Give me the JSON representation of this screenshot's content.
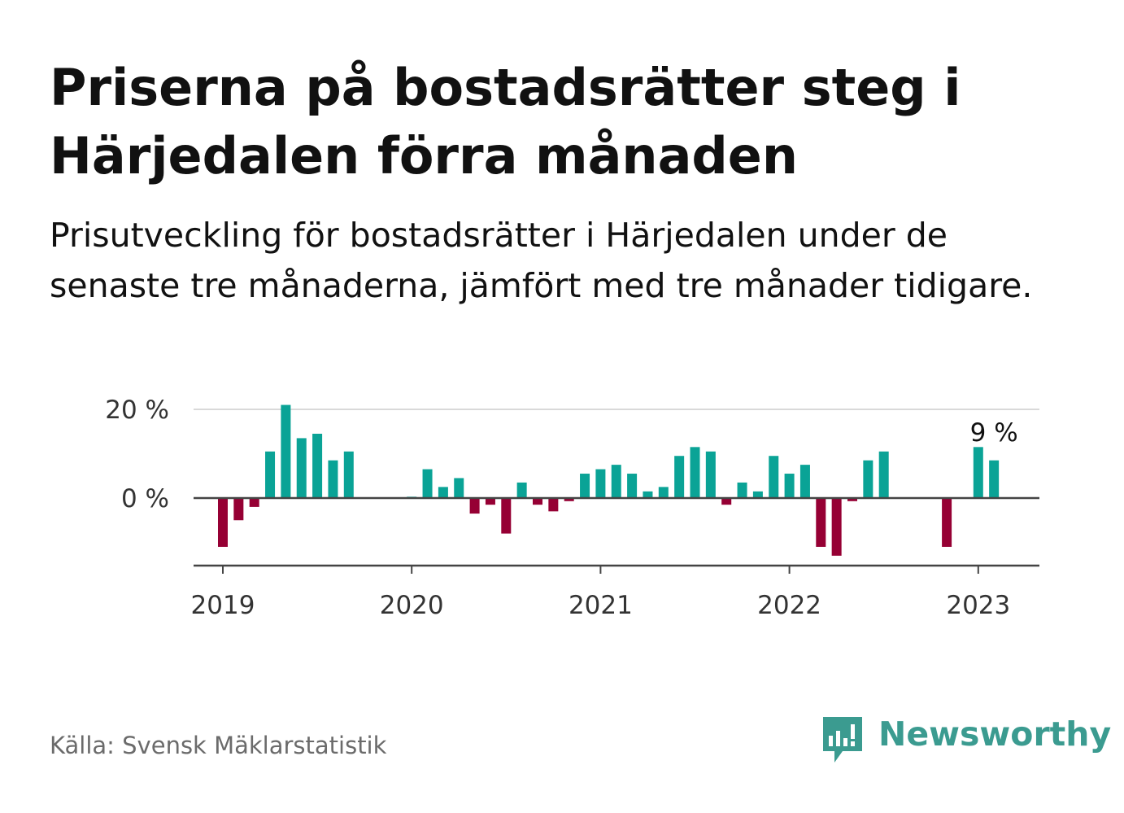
{
  "title": "Priserna på bostadsrätter steg i Härjedalen förra månaden",
  "subtitle": "Prisutveckling för bostadsrätter i Härjedalen under de senaste tre månaderna, jämfört med tre månader tidigare.",
  "source": "Källa: Svensk Mäklarstatistik",
  "brand": "Newsworthy",
  "colors": {
    "positive": "#0aa396",
    "negative": "#960034",
    "brand": "#3b9b90"
  },
  "chart_data": {
    "type": "bar",
    "title": "",
    "xlabel": "",
    "ylabel": "",
    "ylim": [
      -15,
      20
    ],
    "y_ticks": [
      {
        "value": 0,
        "label": "0 %"
      },
      {
        "value": 20,
        "label": "20 %"
      }
    ],
    "x_ticks": [
      "2019",
      "2020",
      "2021",
      "2022",
      "2023"
    ],
    "grid": "horizontal",
    "legend": "none",
    "annotation": {
      "text": "9 %",
      "x": "2023-02"
    },
    "x": [
      "2019-01",
      "2019-02",
      "2019-03",
      "2019-04",
      "2019-05",
      "2019-06",
      "2019-07",
      "2019-08",
      "2019-09",
      "2019-10",
      "2019-11",
      "2019-12",
      "2020-01",
      "2020-02",
      "2020-03",
      "2020-04",
      "2020-05",
      "2020-06",
      "2020-07",
      "2020-08",
      "2020-09",
      "2020-10",
      "2020-11",
      "2020-12",
      "2021-01",
      "2021-02",
      "2021-03",
      "2021-04",
      "2021-05",
      "2021-06",
      "2021-07",
      "2021-08",
      "2021-09",
      "2021-10",
      "2021-11",
      "2021-12",
      "2022-01",
      "2022-02",
      "2022-03",
      "2022-04",
      "2022-05",
      "2022-06",
      "2022-07",
      "2022-08",
      "2022-09",
      "2022-10",
      "2022-11",
      "2022-12",
      "2023-01",
      "2023-02"
    ],
    "values": [
      -11,
      -5,
      -2,
      10.5,
      21,
      13.5,
      14.5,
      8.5,
      10.5,
      null,
      null,
      null,
      0.3,
      6.5,
      2.5,
      4.5,
      -3.5,
      -1.5,
      -8,
      3.5,
      -1.5,
      -3,
      -0.7,
      5.5,
      6.5,
      7.5,
      5.5,
      1.5,
      2.5,
      9.5,
      11.5,
      10.5,
      -1.5,
      3.5,
      1.5,
      9.5,
      5.5,
      7.5,
      -11,
      -13,
      -0.7,
      8.5,
      10.5,
      null,
      null,
      null,
      -11,
      null,
      11.5,
      8.5
    ]
  }
}
